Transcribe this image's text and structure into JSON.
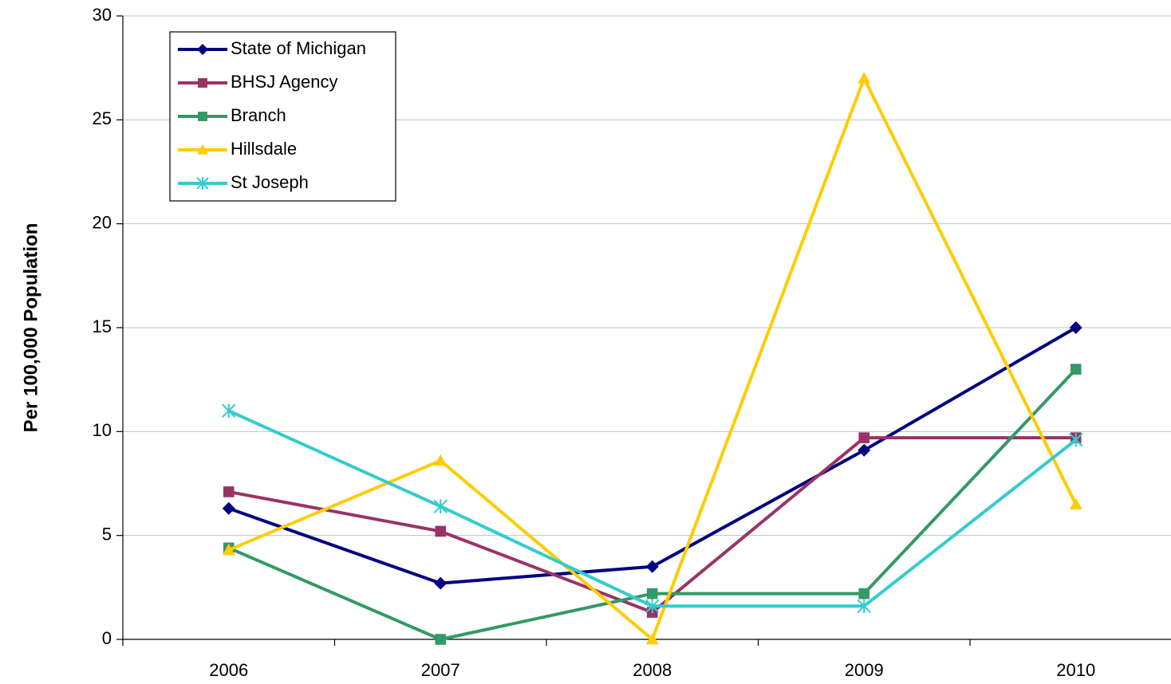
{
  "chart_data": {
    "type": "line",
    "ylabel": "Per 100,000 Population",
    "categories": [
      "2006",
      "2007",
      "2008",
      "2009",
      "2010"
    ],
    "series": [
      {
        "name": "State of Michigan",
        "color": "#000080",
        "marker": "diamond",
        "values": [
          6.3,
          2.7,
          3.5,
          9.1,
          15.0
        ]
      },
      {
        "name": "BHSJ Agency",
        "color": "#993366",
        "marker": "square",
        "values": [
          7.1,
          5.2,
          1.3,
          9.7,
          9.7
        ]
      },
      {
        "name": "Branch",
        "color": "#339966",
        "marker": "square",
        "values": [
          4.4,
          0,
          2.2,
          2.2,
          13.0
        ]
      },
      {
        "name": "Hillsdale",
        "color": "#ffcc00",
        "marker": "triangle",
        "values": [
          4.3,
          8.6,
          0,
          27.0,
          6.5
        ]
      },
      {
        "name": "St Joseph",
        "color": "#33cccc",
        "marker": "star",
        "values": [
          11.0,
          6.4,
          1.6,
          1.6,
          9.6
        ]
      }
    ],
    "ylim": [
      0,
      30
    ],
    "yticks": [
      0,
      5,
      10,
      15,
      20,
      25,
      30
    ],
    "grid": true,
    "legend": "upper left"
  }
}
